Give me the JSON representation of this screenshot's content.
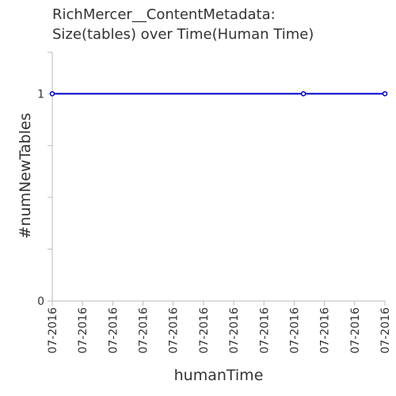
{
  "chart_data": {
    "type": "line",
    "title": [
      "RichMercer__ContentMetadata:",
      "Size(tables) over Time(Human Time)"
    ],
    "xlabel": "humanTime",
    "ylabel": "#numNewTables",
    "x_tick_labels": [
      "07-2016",
      "07-2016",
      "07-2016",
      "07-2016",
      "07-2016",
      "07-2016",
      "07-2016",
      "07-2016",
      "07-2016",
      "07-2016",
      "07-2016",
      "07-2016"
    ],
    "y_tick_labels": [
      "0",
      "1"
    ],
    "ylim": [
      0,
      1.2
    ],
    "grid": false,
    "series": [
      {
        "x_fraction": [
          0,
          0.755,
          1
        ],
        "values": [
          1,
          1,
          1
        ]
      }
    ],
    "series_color": "#0000cc"
  }
}
